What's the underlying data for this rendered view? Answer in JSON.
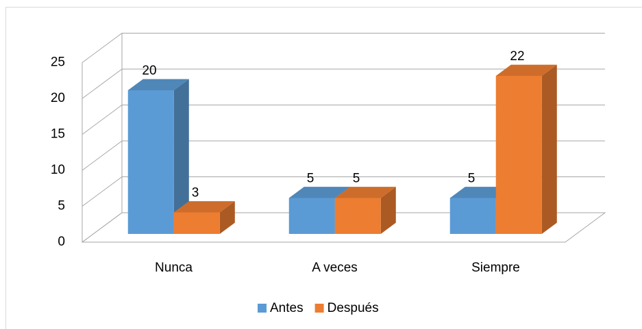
{
  "chart_data": {
    "type": "bar3d",
    "categories": [
      "Nunca",
      "A veces",
      "Siempre"
    ],
    "series": [
      {
        "name": "Antes",
        "color": "#5b9bd5",
        "values": [
          20,
          5,
          5
        ]
      },
      {
        "name": "Después",
        "color": "#ed7d31",
        "values": [
          3,
          5,
          22
        ]
      }
    ],
    "ylim": [
      0,
      25
    ],
    "yticks": [
      0,
      5,
      10,
      15,
      20,
      25
    ],
    "grid": true,
    "legend": "bottom"
  }
}
